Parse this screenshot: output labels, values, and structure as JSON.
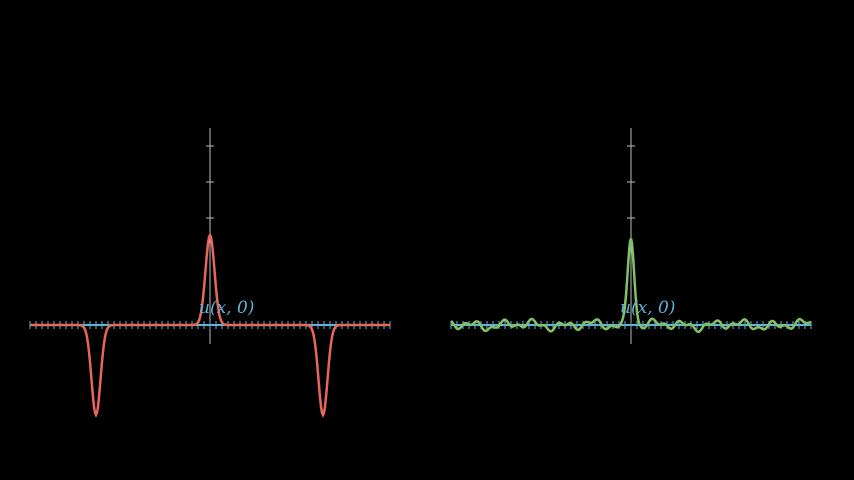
{
  "colors": {
    "background": "#000000",
    "axis": "#bdbdbd",
    "baseline": "#5fb3d6",
    "left_curve": "#e8675a",
    "right_curve": "#83c167"
  },
  "panels": [
    {
      "id": "left",
      "label": "u(x, 0)",
      "curve": "red-pulse-with-negative-dips"
    },
    {
      "id": "right",
      "label": "u(x, 0)",
      "curve": "green-oscillating-peak"
    }
  ]
}
